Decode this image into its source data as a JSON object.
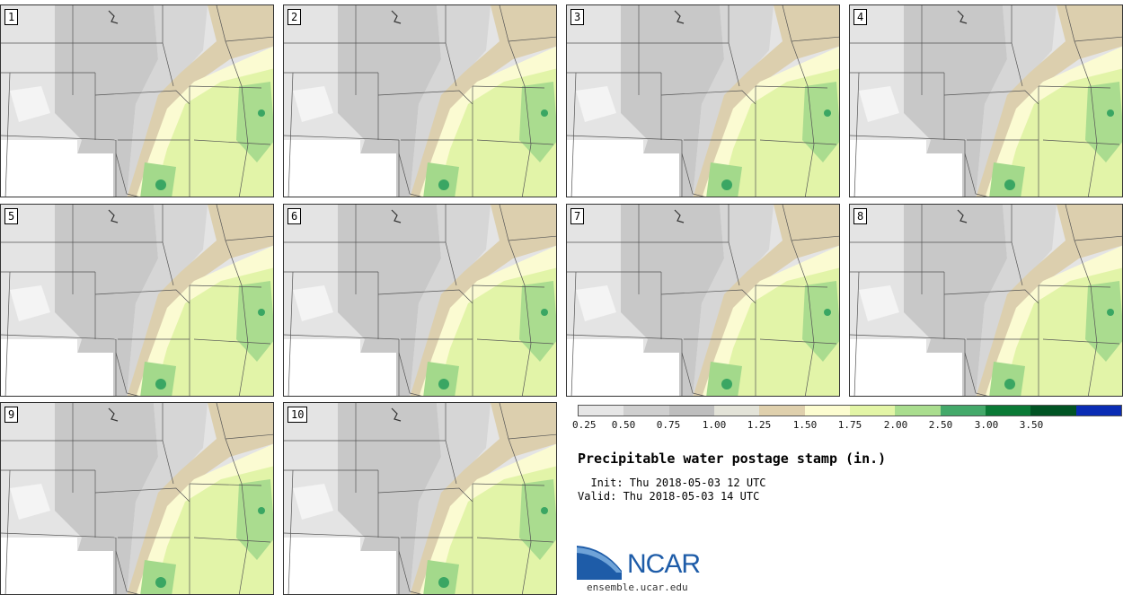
{
  "figure": {
    "title": "Precipitable water postage stamp (in.)",
    "init_line": "  Init: Thu 2018-05-03 12 UTC",
    "valid_line": "Valid: Thu 2018-05-03 14 UTC"
  },
  "members": [
    {
      "label": "1"
    },
    {
      "label": "2"
    },
    {
      "label": "3"
    },
    {
      "label": "4"
    },
    {
      "label": "5"
    },
    {
      "label": "6"
    },
    {
      "label": "7"
    },
    {
      "label": "8"
    },
    {
      "label": "9"
    },
    {
      "label": "10"
    }
  ],
  "legend": {
    "colors": [
      "#e6e6e6",
      "#cfcfcf",
      "#bebebe",
      "#e3e3d8",
      "#dfd0ad",
      "#fcfcd0",
      "#e3f5a6",
      "#a9dd8e",
      "#44a96a",
      "#0b7a36",
      "#015424",
      "#0a2cb4"
    ],
    "ticks": [
      "0.25",
      "0.50",
      "0.75",
      "1.00",
      "1.25",
      "1.50",
      "1.75",
      "2.00",
      "2.50",
      "3.00",
      "3.50"
    ]
  },
  "logo": {
    "name": "NCAR",
    "url": "ensemble.ucar.edu"
  }
}
